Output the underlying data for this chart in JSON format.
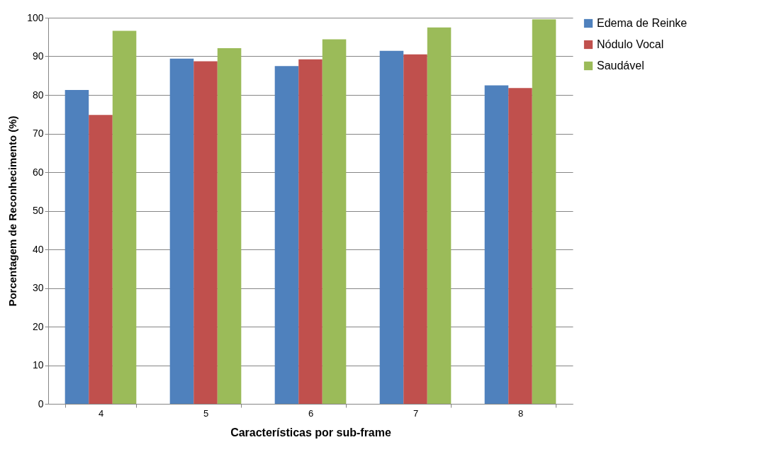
{
  "chart_data": {
    "type": "bar",
    "xlabel": "Características por sub-frame",
    "ylabel": "Porcentagem de Reconhecimento (%)",
    "categories": [
      "4",
      "5",
      "6",
      "7",
      "8"
    ],
    "series": [
      {
        "name": "Edema de Reinke",
        "color": "#4f81bd",
        "values": [
          81.3,
          89.4,
          87.5,
          91.4,
          82.5
        ]
      },
      {
        "name": "Nódulo Vocal",
        "color": "#c0504d",
        "values": [
          74.8,
          88.7,
          89.2,
          90.5,
          81.8
        ]
      },
      {
        "name": "Saudável",
        "color": "#9bbb59",
        "values": [
          96.6,
          92.1,
          94.4,
          97.5,
          99.6
        ]
      }
    ],
    "ylim": [
      0,
      100
    ],
    "yticks": [
      0,
      10,
      20,
      30,
      40,
      50,
      60,
      70,
      80,
      90,
      100
    ],
    "grid": "y",
    "legend": "right"
  }
}
